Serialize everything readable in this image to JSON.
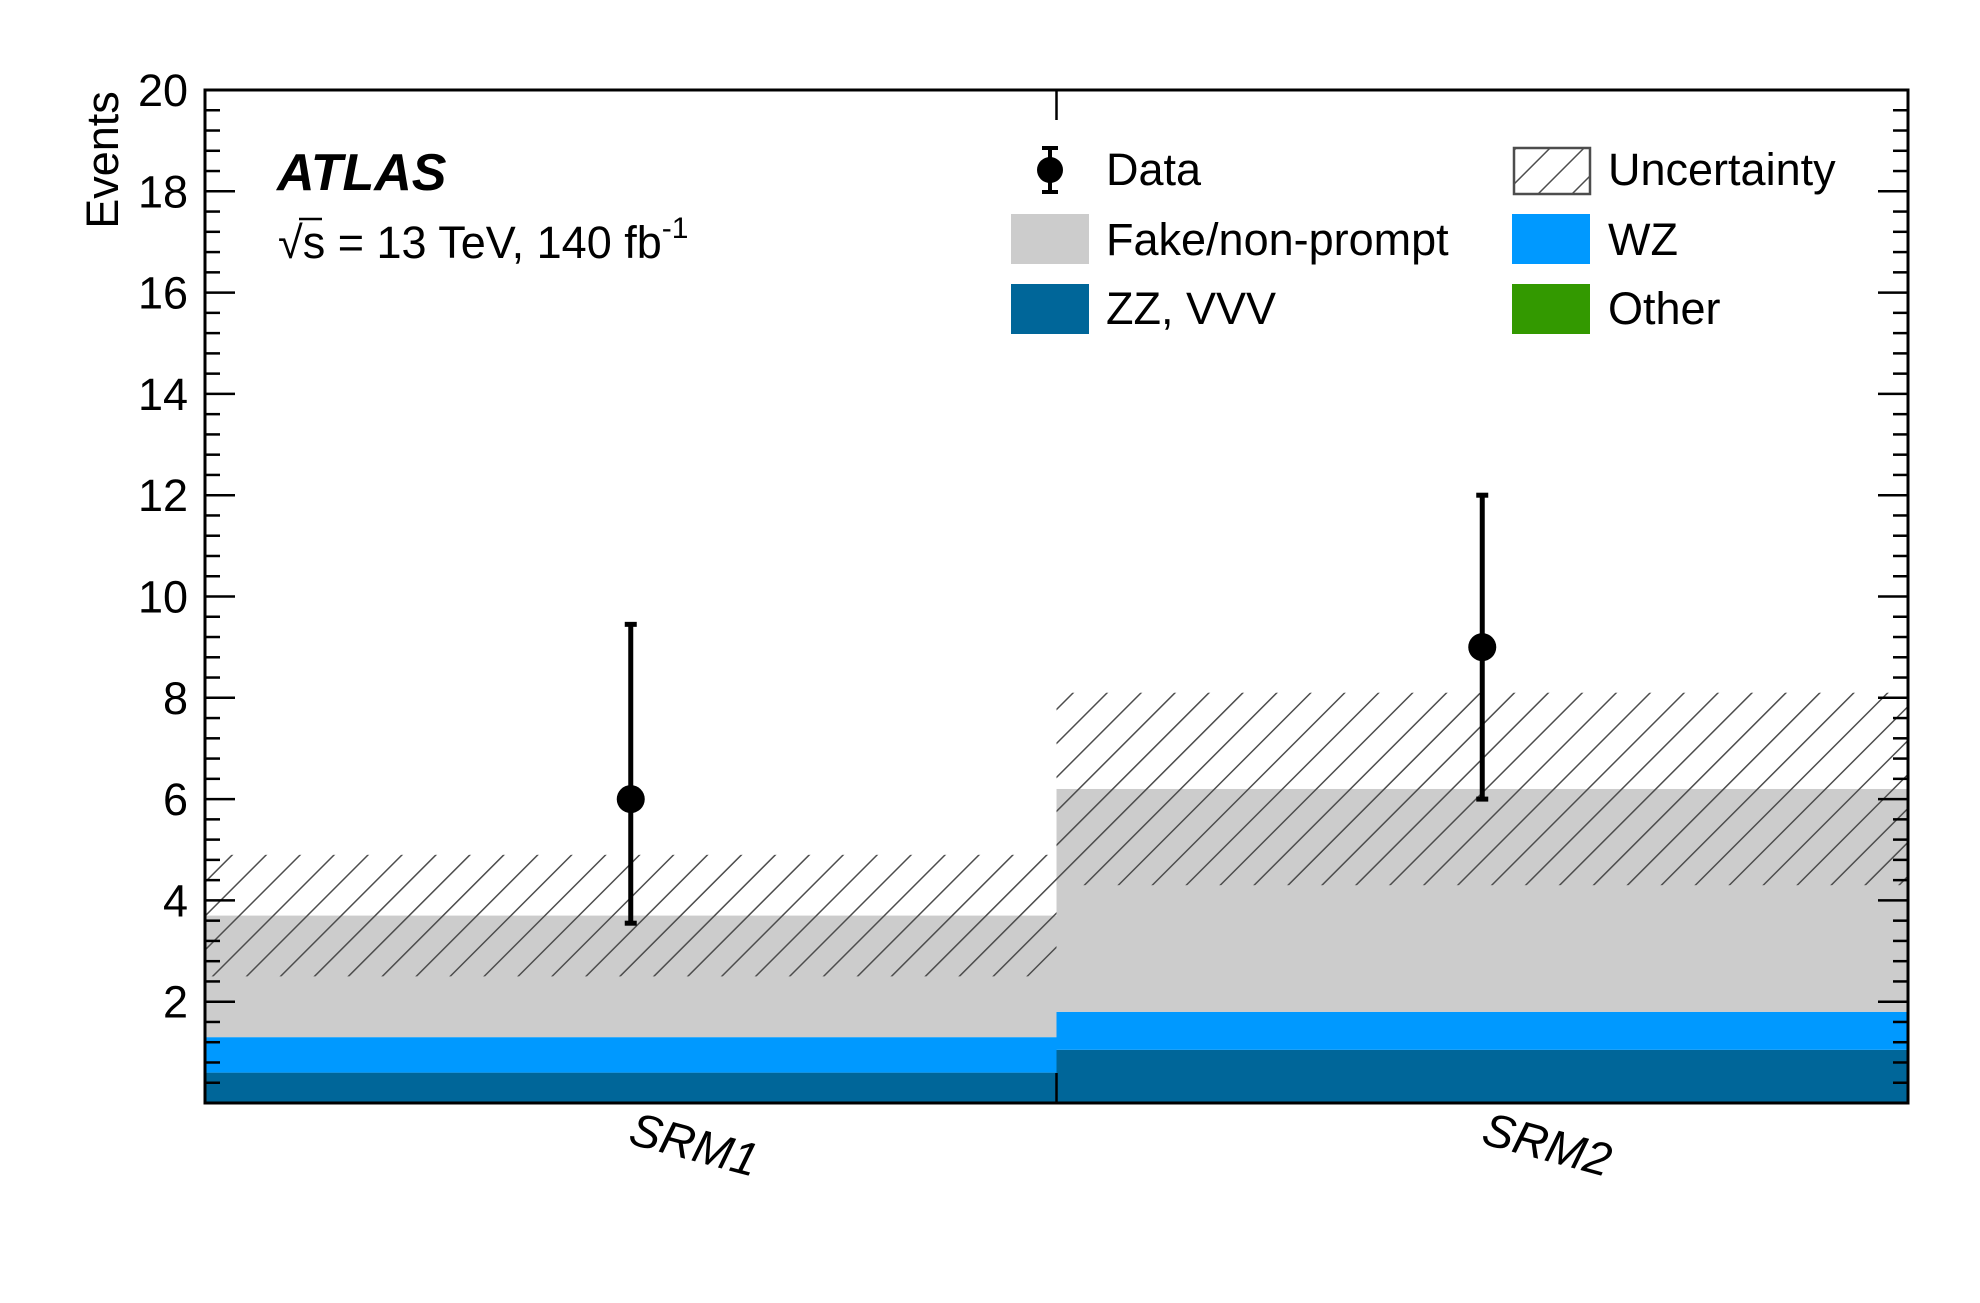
{
  "chart_data": {
    "type": "bar",
    "stacked": true,
    "categories": [
      "SRM1",
      "SRM2"
    ],
    "ylabel": "Events",
    "xlabel": "",
    "ylim": [
      0,
      20
    ],
    "yticks": [
      "2",
      "4",
      "6",
      "8",
      "10",
      "12",
      "14",
      "16",
      "18",
      "20"
    ],
    "experiment_label": "ATLAS",
    "energy_label": {
      "sqrt_symbol": "√",
      "s": "s",
      "text": " = 13 TeV, 140 fb",
      "superscript": "-1"
    },
    "series": [
      {
        "name": "ZZ, VVV",
        "values": [
          0.6,
          1.05
        ],
        "color": "#006699"
      },
      {
        "name": "Other",
        "values": [
          0.0,
          0.0
        ],
        "color": "#339900"
      },
      {
        "name": "WZ",
        "values": [
          0.7,
          0.75
        ],
        "color": "#0099ff"
      },
      {
        "name": "Fake/non-prompt",
        "values": [
          2.4,
          4.4
        ],
        "color": "#cccccc"
      }
    ],
    "uncertainty": {
      "name": "Uncertainty",
      "low": [
        2.5,
        4.3
      ],
      "high": [
        4.9,
        8.1
      ]
    },
    "data": {
      "name": "Data",
      "values": [
        6,
        9
      ],
      "err_low": [
        2.45,
        3.0
      ],
      "err_high": [
        3.45,
        3.0
      ]
    },
    "legend_placement": "top-right",
    "grid": false
  }
}
